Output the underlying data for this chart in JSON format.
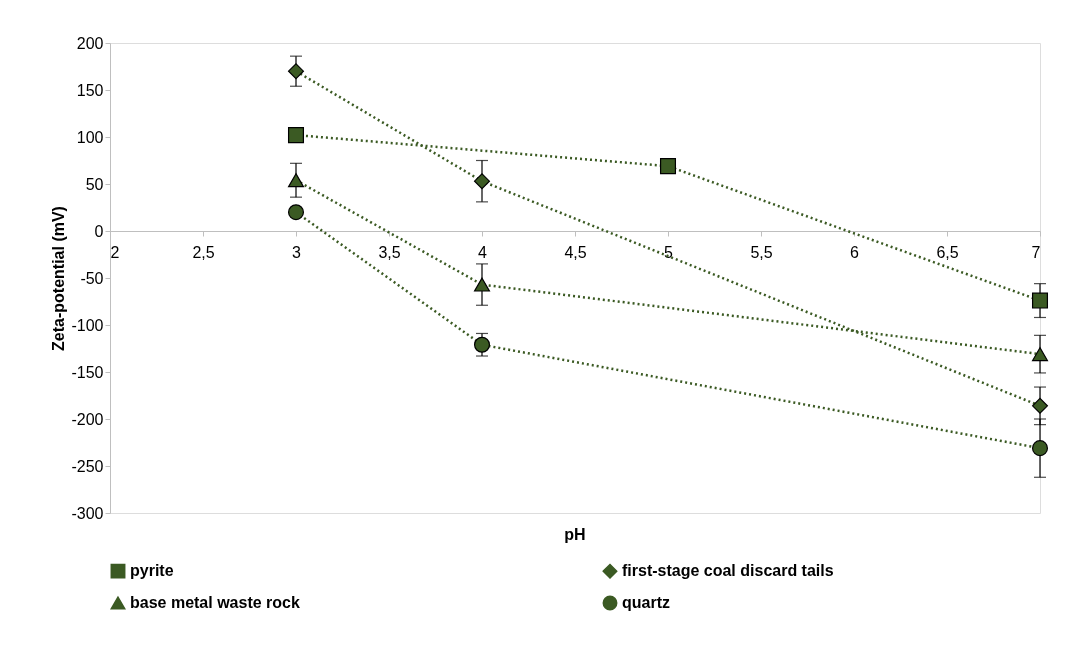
{
  "chart_data": {
    "type": "line",
    "xlabel": "pH",
    "ylabel": "Zeta-potential (mV)",
    "xlim": [
      2,
      7
    ],
    "xticks": [
      2,
      {
        "value": 2.5,
        "label": "2,5"
      },
      3,
      {
        "value": 3.5,
        "label": "3,5"
      },
      4,
      {
        "value": 4.5,
        "label": "4,5"
      },
      5,
      {
        "value": 5.5,
        "label": "5,5"
      },
      6,
      {
        "value": 6.5,
        "label": "6,5"
      },
      7
    ],
    "ylim": [
      -300,
      200
    ],
    "yticks": [
      -300,
      -250,
      -200,
      -150,
      -100,
      -50,
      0,
      50,
      100,
      150,
      200
    ],
    "grid": false,
    "legend": "bottom",
    "line_style": "dotted",
    "series": [
      {
        "name": "pyrite",
        "color": "#3b5a23",
        "marker": "square",
        "x": [
          3,
          5,
          7
        ],
        "values": [
          102,
          69,
          -74
        ],
        "errors": [
          null,
          null,
          18
        ]
      },
      {
        "name": "first-stage coal discard tails",
        "color": "#3b5a23",
        "marker": "diamond",
        "x": [
          3,
          4,
          7
        ],
        "values": [
          170,
          53,
          -186
        ],
        "errors": [
          16,
          22,
          20
        ]
      },
      {
        "name": "base metal waste rock",
        "color": "#3b5a23",
        "marker": "triangle",
        "x": [
          3,
          4,
          7
        ],
        "values": [
          54,
          -57,
          -131
        ],
        "errors": [
          18,
          22,
          20
        ]
      },
      {
        "name": "quartz",
        "color": "#3b5a23",
        "marker": "circle",
        "x": [
          3,
          4,
          7
        ],
        "values": [
          20,
          -121,
          -231
        ],
        "errors": [
          null,
          12,
          31
        ]
      }
    ]
  }
}
